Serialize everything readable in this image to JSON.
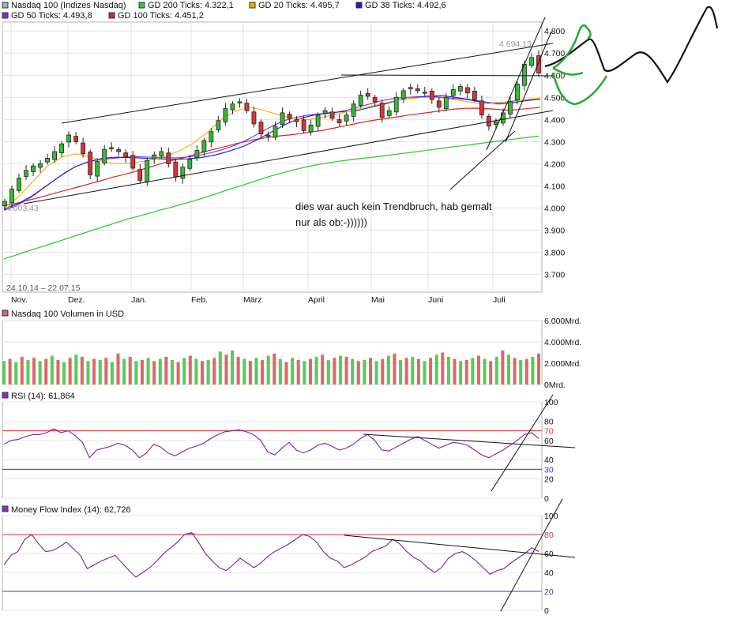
{
  "chart_data": {
    "type": "candlestick",
    "date_range": "24.10.14 – 22.07.15",
    "legend": [
      {
        "key": "nasdaq",
        "label": "Nasdaq 100 (Indizes Nasdaq)",
        "color": "#333333"
      },
      {
        "key": "gd200",
        "label": "GD 200 Ticks: 4.322,1",
        "color": "#33cc33"
      },
      {
        "key": "gd20",
        "label": "GD 20 Ticks: 4.495,7",
        "color": "#f0b000"
      },
      {
        "key": "gd38",
        "label": "GD 38 Ticks: 4.492,6",
        "color": "#1a1acc"
      },
      {
        "key": "gd50",
        "label": "GD 50 Ticks: 4.493,8",
        "color": "#8a2be2"
      },
      {
        "key": "gd100",
        "label": "GD 100 Ticks: 4.451,2",
        "color": "#dd2222"
      }
    ],
    "months": [
      "Nov.",
      "Dez.",
      "Jan.",
      "Feb.",
      "März",
      "April",
      "Mai",
      "Juni",
      "Juli"
    ],
    "price": {
      "yticks": [
        "4.800",
        "4.700",
        "4.600",
        "4.500",
        "4.400",
        "4.300",
        "4.200",
        "4.100",
        "4.000",
        "3.900",
        "3.800",
        "3.700"
      ],
      "ylim": [
        3620,
        4840
      ],
      "high_label": "4.694,13",
      "low_label": "4.003,43",
      "closes": [
        4030,
        4085,
        4135,
        4170,
        4190,
        4200,
        4225,
        4255,
        4290,
        4330,
        4300,
        4245,
        4150,
        4210,
        4265,
        4270,
        4255,
        4230,
        4180,
        4125,
        4215,
        4240,
        4255,
        4200,
        4140,
        4185,
        4220,
        4260,
        4305,
        4345,
        4395,
        4450,
        4470,
        4480,
        4440,
        4380,
        4335,
        4325,
        4370,
        4430,
        4405,
        4390,
        4350,
        4375,
        4420,
        4440,
        4405,
        4385,
        4420,
        4470,
        4510,
        4505,
        4480,
        4410,
        4440,
        4500,
        4530,
        4545,
        4530,
        4520,
        4490,
        4455,
        4500,
        4535,
        4550,
        4520,
        4490,
        4420,
        4370,
        4390,
        4430,
        4480,
        4560,
        4650,
        4680,
        4610
      ],
      "gd200": [
        3770,
        3785,
        3800,
        3815,
        3830,
        3845,
        3860,
        3875,
        3890,
        3905,
        3920,
        3935,
        3950,
        3962,
        3975,
        3988,
        4000,
        4013,
        4026,
        4040,
        4055,
        4070,
        4086,
        4100,
        4115,
        4130,
        4145,
        4158,
        4170,
        4182,
        4192,
        4200,
        4207,
        4214,
        4220,
        4225,
        4230,
        4236,
        4242,
        4248,
        4254,
        4260,
        4266,
        4272,
        4278,
        4284,
        4290,
        4296,
        4302,
        4308,
        4314,
        4320,
        4325
      ],
      "gd100": [
        4010,
        4020,
        4032,
        4045,
        4058,
        4072,
        4085,
        4098,
        4112,
        4125,
        4140,
        4152,
        4165,
        4180,
        4195,
        4210,
        4222,
        4235,
        4250,
        4263,
        4275,
        4288,
        4300,
        4310,
        4318,
        4325,
        4330,
        4336,
        4343,
        4350,
        4360,
        4370,
        4380,
        4390,
        4398,
        4405,
        4412,
        4420,
        4427,
        4433,
        4440,
        4446,
        4450,
        4451,
        4449,
        4446,
        4442,
        4445,
        4450,
        4455
      ],
      "gd50": [
        3990,
        4010,
        4040,
        4080,
        4120,
        4160,
        4190,
        4210,
        4220,
        4225,
        4230,
        4232,
        4230,
        4228,
        4226,
        4230,
        4238,
        4250,
        4265,
        4285,
        4310,
        4340,
        4370,
        4395,
        4410,
        4420,
        4425,
        4430,
        4440,
        4455,
        4470,
        4485,
        4495,
        4500,
        4503,
        4505,
        4500,
        4495,
        4490,
        4480,
        4475,
        4478,
        4485,
        4490,
        4494
      ],
      "gd38": [
        3995,
        4020,
        4055,
        4100,
        4145,
        4185,
        4210,
        4225,
        4230,
        4228,
        4225,
        4222,
        4220,
        4222,
        4228,
        4240,
        4258,
        4280,
        4310,
        4345,
        4380,
        4405,
        4420,
        4430,
        4435,
        4440,
        4455,
        4470,
        4488,
        4498,
        4505,
        4508,
        4500,
        4490,
        4480,
        4470,
        4475,
        4485,
        4492
      ],
      "gd20": [
        4000,
        4050,
        4120,
        4190,
        4230,
        4245,
        4230,
        4205,
        4200,
        4205,
        4215,
        4230,
        4255,
        4290,
        4340,
        4400,
        4440,
        4455,
        4440,
        4420,
        4405,
        4400,
        4410,
        4425,
        4440,
        4455,
        4470,
        4485,
        4495,
        4500,
        4498,
        4490,
        4480,
        4470,
        4475,
        4480,
        4490,
        4496
      ]
    },
    "volume": {
      "title": "Nasdaq 100 Volumen in USD",
      "yticks": [
        "6.000Mrd.",
        "4.000Mrd.",
        "2.000Mrd.",
        "0Mrd."
      ],
      "ylim": [
        0,
        6000
      ],
      "values": [
        2200,
        2400,
        2100,
        2600,
        2300,
        2500,
        2200,
        2400,
        2700,
        2300,
        2100,
        2500,
        2800,
        2600,
        2200,
        2400,
        2300,
        2500,
        2100,
        2900,
        2400,
        2600,
        2200,
        2300,
        2500,
        2200,
        2400,
        2600,
        2300,
        2100,
        2500,
        2700,
        2400,
        2200,
        2300,
        2500,
        3100,
        2800,
        3200,
        2600,
        2400,
        2200,
        2500,
        2300,
        2700,
        2900,
        2400,
        2100,
        2500,
        2300,
        2200,
        2400,
        2600,
        2800,
        2300,
        2500,
        2700,
        2600,
        2400,
        2200,
        2300,
        2500,
        2200,
        2400,
        2700,
        2900,
        2300,
        2500,
        2600,
        2400,
        2200,
        2500,
        2800,
        3000,
        2600,
        2400,
        2200,
        2300,
        2500,
        2700,
        2400,
        2200,
        2600,
        3200,
        2800,
        2500,
        2300,
        2400,
        2600,
        2900
      ]
    },
    "rsi": {
      "title": "RSI (14): 61,864",
      "yticks": [
        "100",
        "80",
        "70",
        "60",
        "40",
        "30",
        "20",
        "0"
      ],
      "lines": {
        "upper": 70,
        "lower": 30
      },
      "values": [
        56,
        60,
        61,
        64,
        66,
        66,
        68,
        72,
        68,
        70,
        65,
        58,
        42,
        50,
        52,
        54,
        57,
        55,
        50,
        42,
        47,
        56,
        53,
        47,
        44,
        48,
        52,
        54,
        57,
        62,
        66,
        69,
        70,
        71,
        69,
        66,
        60,
        48,
        45,
        52,
        58,
        50,
        47,
        50,
        55,
        57,
        54,
        50,
        52,
        56,
        62,
        66,
        60,
        50,
        49,
        53,
        57,
        61,
        64,
        60,
        56,
        52,
        55,
        58,
        57,
        55,
        50,
        45,
        42,
        46,
        50,
        55,
        60,
        66,
        68,
        62
      ]
    },
    "mfi": {
      "title": "Money Flow Index (14): 62,726",
      "yticks": [
        "100",
        "80",
        "60",
        "40",
        "20",
        "0"
      ],
      "lines": {
        "upper": 80,
        "lower": 20
      },
      "values": [
        48,
        58,
        62,
        75,
        80,
        70,
        62,
        63,
        67,
        72,
        65,
        58,
        44,
        48,
        52,
        55,
        58,
        50,
        42,
        35,
        40,
        45,
        52,
        60,
        66,
        72,
        80,
        82,
        72,
        60,
        52,
        45,
        42,
        48,
        55,
        50,
        45,
        50,
        57,
        62,
        66,
        70,
        75,
        80,
        78,
        72,
        62,
        55,
        52,
        45,
        48,
        52,
        56,
        62,
        65,
        68,
        75,
        70,
        62,
        56,
        52,
        45,
        40,
        45,
        55,
        60,
        62,
        58,
        52,
        45,
        38,
        42,
        44,
        50,
        55,
        60,
        66,
        62
      ]
    },
    "annotation": "dies war auch kein Trendbruch, hab gemalt\nnur als ob:-))))))"
  }
}
